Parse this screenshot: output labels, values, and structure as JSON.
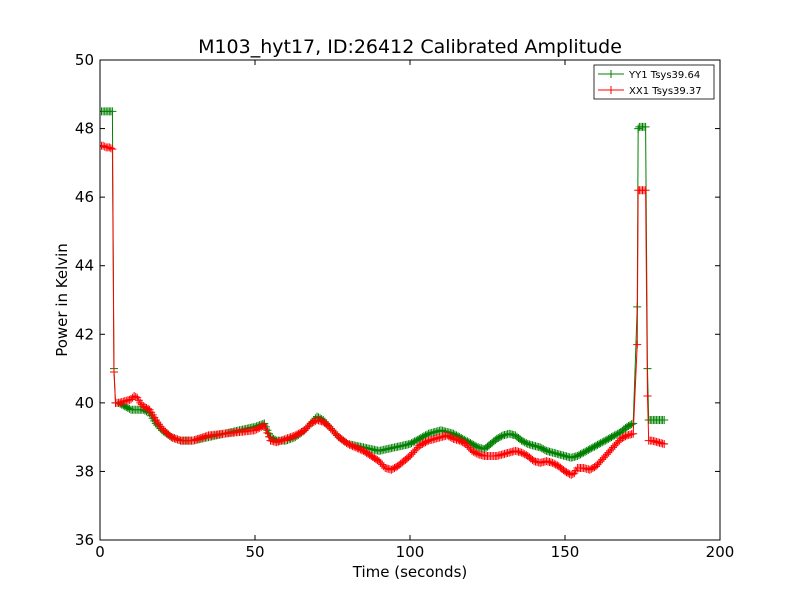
{
  "chart_data": {
    "type": "line",
    "title": "M103_hyt17, ID:26412 Calibrated Amplitude",
    "xlabel": "Time (seconds)",
    "ylabel": "Power in Kelvin",
    "xlim": [
      0,
      200
    ],
    "ylim": [
      36,
      50
    ],
    "xticks": [
      0,
      50,
      100,
      150,
      200
    ],
    "yticks": [
      36,
      38,
      40,
      42,
      44,
      46,
      48,
      50
    ],
    "xtick_labels": [
      "0",
      "50",
      "100",
      "150",
      "200"
    ],
    "ytick_labels": [
      "36",
      "38",
      "40",
      "42",
      "44",
      "46",
      "48",
      "50"
    ],
    "grid": false,
    "legend_position": "top-right",
    "marker": "+",
    "series": [
      {
        "name": "YY1 Tsys39.64",
        "color": "#008000",
        "x": [
          0,
          1,
          2,
          3,
          4,
          4.5,
          5,
          6,
          8,
          10,
          12,
          14,
          16,
          18,
          20,
          23,
          26,
          30,
          35,
          40,
          45,
          50,
          53,
          55,
          57,
          60,
          63,
          66,
          68,
          70,
          72,
          74,
          77,
          80,
          85,
          90,
          95,
          100,
          103,
          106,
          108,
          110,
          112,
          114,
          116,
          118,
          120,
          122,
          124,
          126,
          128,
          130,
          132,
          134,
          136,
          138,
          140,
          142,
          144,
          146,
          148,
          150,
          152,
          154,
          156,
          158,
          160,
          162,
          164,
          166,
          168,
          170,
          172,
          173.3,
          173.6,
          174,
          175,
          176,
          176.6,
          177,
          178,
          180,
          182
        ],
        "values": [
          48.5,
          48.5,
          48.5,
          48.5,
          48.5,
          41.0,
          40.0,
          40.0,
          39.9,
          39.8,
          39.8,
          39.8,
          39.7,
          39.4,
          39.2,
          39.0,
          38.9,
          38.9,
          39.0,
          39.1,
          39.2,
          39.3,
          39.4,
          39.0,
          38.9,
          38.9,
          39.0,
          39.2,
          39.4,
          39.6,
          39.5,
          39.3,
          39.0,
          38.8,
          38.7,
          38.6,
          38.7,
          38.8,
          38.95,
          39.1,
          39.15,
          39.2,
          39.15,
          39.1,
          39.0,
          38.9,
          38.8,
          38.7,
          38.65,
          38.8,
          38.95,
          39.05,
          39.1,
          39.05,
          38.9,
          38.8,
          38.75,
          38.7,
          38.6,
          38.55,
          38.5,
          38.45,
          38.4,
          38.45,
          38.55,
          38.65,
          38.75,
          38.85,
          38.95,
          39.05,
          39.15,
          39.3,
          39.4,
          42.8,
          48.0,
          48.05,
          48.05,
          48.05,
          41.0,
          39.5,
          39.5,
          39.5,
          39.5
        ]
      },
      {
        "name": "XX1 Tsys39.37",
        "color": "#ff0000",
        "x": [
          0,
          1,
          2,
          3,
          4,
          4.5,
          5,
          6,
          8,
          10,
          11,
          12,
          13,
          14,
          16,
          18,
          20,
          23,
          26,
          30,
          35,
          40,
          45,
          50,
          53,
          55,
          57,
          60,
          63,
          66,
          68,
          70,
          72,
          74,
          77,
          80,
          85,
          90,
          92,
          94,
          96,
          98,
          100,
          103,
          106,
          108,
          110,
          112,
          114,
          116,
          118,
          120,
          122,
          124,
          126,
          128,
          130,
          132,
          134,
          136,
          138,
          140,
          142,
          144,
          146,
          148,
          150,
          152,
          153,
          154,
          156,
          158,
          160,
          162,
          164,
          166,
          168,
          170,
          172,
          173.3,
          173.6,
          174,
          175,
          176,
          176.6,
          177,
          178,
          180,
          182
        ],
        "values": [
          47.5,
          47.5,
          47.45,
          47.45,
          47.4,
          40.9,
          40.0,
          40.0,
          40.05,
          40.1,
          40.2,
          40.15,
          40.0,
          39.9,
          39.8,
          39.5,
          39.25,
          39.0,
          38.9,
          38.9,
          39.05,
          39.1,
          39.15,
          39.2,
          39.35,
          38.9,
          38.85,
          38.95,
          39.05,
          39.2,
          39.4,
          39.5,
          39.45,
          39.3,
          39.0,
          38.8,
          38.6,
          38.3,
          38.1,
          38.05,
          38.15,
          38.3,
          38.45,
          38.75,
          38.9,
          38.95,
          39.0,
          39.05,
          38.95,
          38.9,
          38.8,
          38.6,
          38.5,
          38.45,
          38.45,
          38.45,
          38.5,
          38.55,
          38.6,
          38.55,
          38.45,
          38.3,
          38.25,
          38.3,
          38.25,
          38.15,
          38.0,
          37.9,
          37.95,
          38.1,
          38.1,
          38.05,
          38.15,
          38.35,
          38.55,
          38.75,
          38.95,
          39.05,
          39.1,
          41.7,
          46.2,
          46.2,
          46.2,
          46.2,
          40.2,
          38.9,
          38.9,
          38.85,
          38.8
        ]
      }
    ]
  }
}
